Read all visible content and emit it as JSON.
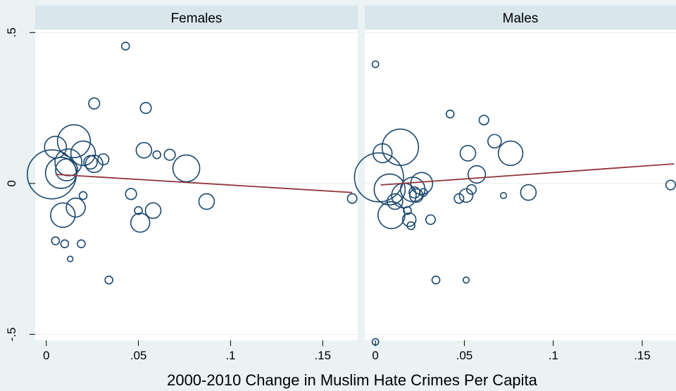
{
  "chart_data": {
    "type": "scatter",
    "xlabel": "2000-2010 Change in Muslim Hate Crimes Per Capita",
    "ylabel": "",
    "xlim": [
      -0.006,
      0.169
    ],
    "ylim": [
      -0.52,
      0.51
    ],
    "x_ticks": [
      0,
      0.05,
      0.1,
      0.15
    ],
    "x_tick_labels": [
      "0",
      ".05",
      ".1",
      ".15"
    ],
    "y_ticks": [
      0.5,
      0,
      -0.5
    ],
    "y_tick_labels": [
      ".5",
      "0",
      "-.5"
    ],
    "grid": true,
    "marker_size_note": "marker area proportional to weight",
    "panels": [
      {
        "title": "Females",
        "fit_line": {
          "x": [
            0.005,
            0.166
          ],
          "y": [
            0.03,
            -0.03
          ]
        },
        "points": [
          {
            "x": 0.043,
            "y": 0.455,
            "w": 1
          },
          {
            "x": 0.026,
            "y": 0.265,
            "w": 2
          },
          {
            "x": 0.054,
            "y": 0.25,
            "w": 2
          },
          {
            "x": 0.015,
            "y": 0.14,
            "w": 18
          },
          {
            "x": 0.02,
            "y": 0.1,
            "w": 10
          },
          {
            "x": 0.005,
            "y": 0.12,
            "w": 8
          },
          {
            "x": 0.012,
            "y": 0.07,
            "w": 12
          },
          {
            "x": 0.024,
            "y": 0.07,
            "w": 3
          },
          {
            "x": 0.026,
            "y": 0.065,
            "w": 5
          },
          {
            "x": 0.031,
            "y": 0.08,
            "w": 2
          },
          {
            "x": 0.053,
            "y": 0.11,
            "w": 4
          },
          {
            "x": 0.06,
            "y": 0.095,
            "w": 1
          },
          {
            "x": 0.067,
            "y": 0.095,
            "w": 2
          },
          {
            "x": 0.076,
            "y": 0.05,
            "w": 12
          },
          {
            "x": 0.003,
            "y": 0.03,
            "w": 40
          },
          {
            "x": 0.008,
            "y": 0.035,
            "w": 16
          },
          {
            "x": 0.011,
            "y": 0.045,
            "w": 8
          },
          {
            "x": 0.046,
            "y": -0.035,
            "w": 2
          },
          {
            "x": 0.02,
            "y": -0.04,
            "w": 1
          },
          {
            "x": 0.087,
            "y": -0.06,
            "w": 4
          },
          {
            "x": 0.016,
            "y": -0.08,
            "w": 6
          },
          {
            "x": 0.009,
            "y": -0.105,
            "w": 10
          },
          {
            "x": 0.05,
            "y": -0.09,
            "w": 1
          },
          {
            "x": 0.058,
            "y": -0.09,
            "w": 4
          },
          {
            "x": 0.051,
            "y": -0.13,
            "w": 6
          },
          {
            "x": 0.005,
            "y": -0.19,
            "w": 1
          },
          {
            "x": 0.01,
            "y": -0.2,
            "w": 1
          },
          {
            "x": 0.019,
            "y": -0.2,
            "w": 1
          },
          {
            "x": 0.013,
            "y": -0.25,
            "w": 0.5
          },
          {
            "x": 0.034,
            "y": -0.32,
            "w": 1
          },
          {
            "x": 0.166,
            "y": -0.05,
            "w": 1.5
          }
        ]
      },
      {
        "title": "Males",
        "fit_line": {
          "x": [
            0.003,
            0.168
          ],
          "y": [
            -0.005,
            0.065
          ]
        },
        "points": [
          {
            "x": 0.0,
            "y": 0.395,
            "w": 0.7
          },
          {
            "x": 0.0,
            "y": -0.525,
            "w": 0.7
          },
          {
            "x": 0.014,
            "y": 0.12,
            "w": 22
          },
          {
            "x": 0.004,
            "y": 0.1,
            "w": 6
          },
          {
            "x": 0.042,
            "y": 0.23,
            "w": 1
          },
          {
            "x": 0.061,
            "y": 0.21,
            "w": 1.5
          },
          {
            "x": 0.067,
            "y": 0.14,
            "w": 3
          },
          {
            "x": 0.076,
            "y": 0.1,
            "w": 10
          },
          {
            "x": 0.052,
            "y": 0.1,
            "w": 4
          },
          {
            "x": 0.057,
            "y": 0.03,
            "w": 5
          },
          {
            "x": 0.002,
            "y": 0.02,
            "w": 40
          },
          {
            "x": 0.008,
            "y": -0.02,
            "w": 16
          },
          {
            "x": 0.016,
            "y": -0.04,
            "w": 10
          },
          {
            "x": 0.021,
            "y": -0.02,
            "w": 10
          },
          {
            "x": 0.026,
            "y": 0.0,
            "w": 8
          },
          {
            "x": 0.011,
            "y": -0.06,
            "w": 4
          },
          {
            "x": 0.023,
            "y": -0.04,
            "w": 3
          },
          {
            "x": 0.009,
            "y": -0.105,
            "w": 12
          },
          {
            "x": 0.019,
            "y": -0.12,
            "w": 3
          },
          {
            "x": 0.018,
            "y": -0.09,
            "w": 1
          },
          {
            "x": 0.02,
            "y": -0.14,
            "w": 1
          },
          {
            "x": 0.022,
            "y": -0.03,
            "w": 2
          },
          {
            "x": 0.027,
            "y": -0.03,
            "w": 1
          },
          {
            "x": 0.031,
            "y": -0.12,
            "w": 1.5
          },
          {
            "x": 0.047,
            "y": -0.05,
            "w": 1.5
          },
          {
            "x": 0.051,
            "y": -0.04,
            "w": 3
          },
          {
            "x": 0.054,
            "y": -0.02,
            "w": 1.5
          },
          {
            "x": 0.072,
            "y": -0.04,
            "w": 0.6
          },
          {
            "x": 0.086,
            "y": -0.03,
            "w": 4
          },
          {
            "x": 0.034,
            "y": -0.32,
            "w": 1
          },
          {
            "x": 0.051,
            "y": -0.32,
            "w": 0.6
          },
          {
            "x": 0.166,
            "y": -0.005,
            "w": 1.5
          }
        ]
      }
    ]
  }
}
